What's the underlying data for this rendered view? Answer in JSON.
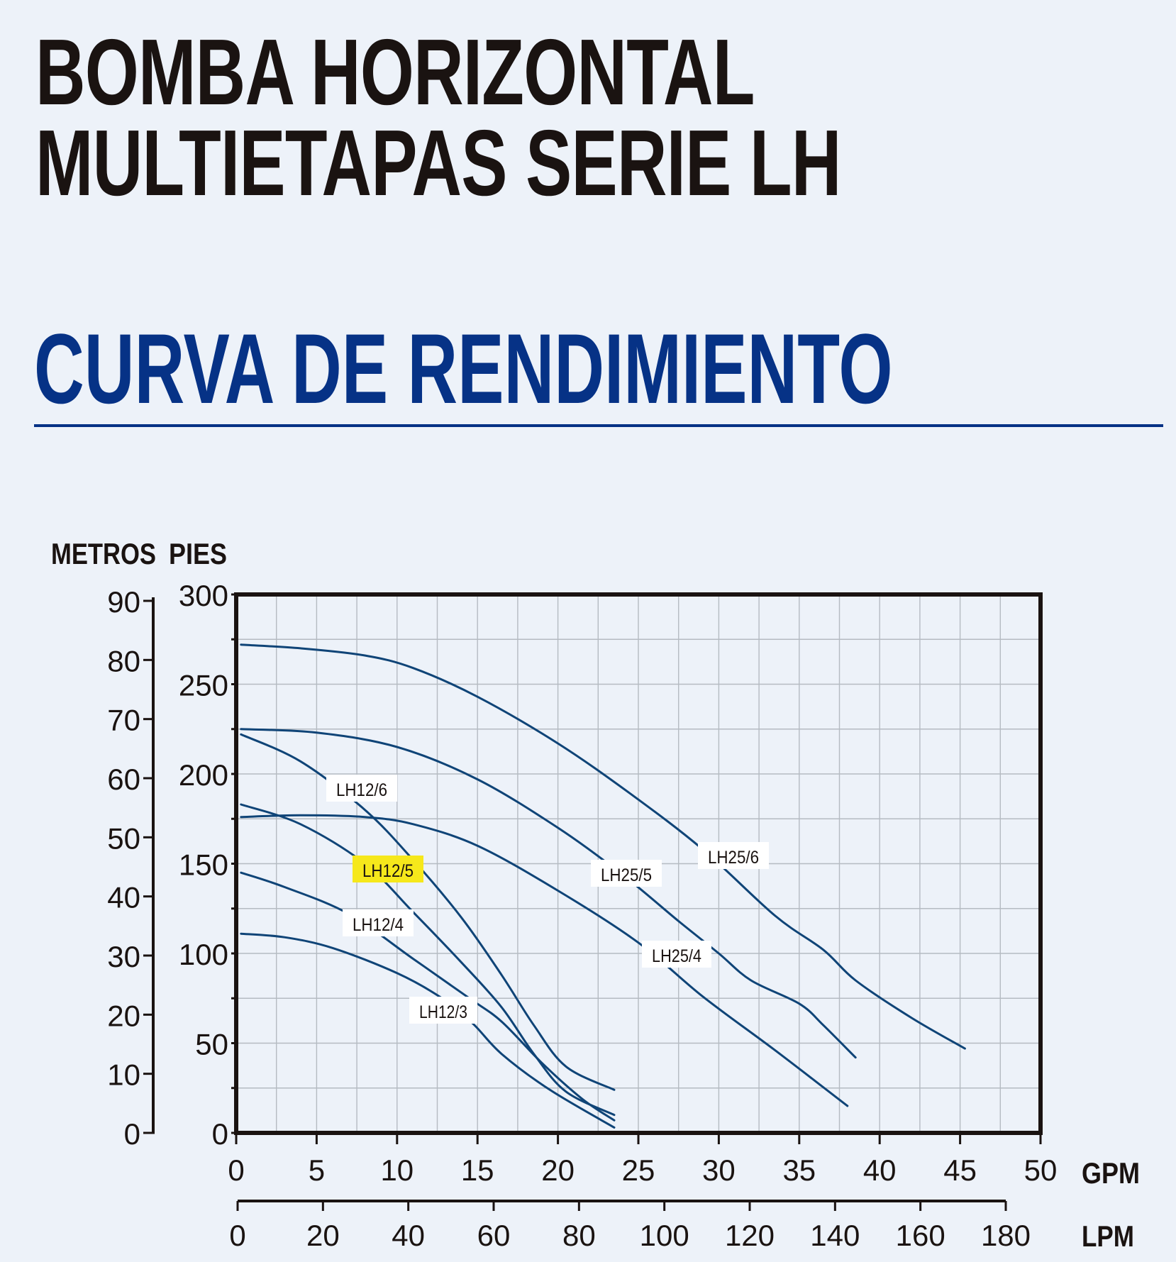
{
  "header": {
    "title": "BOMBA HORIZONTAL MULTIETAPAS SERIE LH",
    "subtitle": "CURVA DE RENDIMIENTO"
  },
  "colors": {
    "title": "#1a1311",
    "accent": "#063286",
    "curve": "#0f4477",
    "highlight": "#f6e81b",
    "background": "#edf2f9"
  },
  "chart_data": {
    "type": "line",
    "grid": true,
    "axes": {
      "x_primary": {
        "label": "GPM",
        "range": [
          0,
          50
        ],
        "ticks": [
          0,
          5,
          10,
          15,
          20,
          25,
          30,
          35,
          40,
          45,
          50
        ]
      },
      "x_secondary": {
        "label": "LPM",
        "range": [
          0,
          180
        ],
        "ticks": [
          0,
          20,
          40,
          60,
          80,
          100,
          120,
          140,
          160,
          180
        ]
      },
      "y_left": {
        "label": "METROS",
        "range": [
          0,
          90
        ],
        "ticks": [
          0,
          10,
          20,
          30,
          40,
          50,
          60,
          70,
          80,
          90
        ]
      },
      "y_right": {
        "label": "PIES",
        "range": [
          0,
          300
        ],
        "ticks": [
          0,
          50,
          100,
          150,
          200,
          250,
          300
        ]
      }
    },
    "series": [
      {
        "name": "LH12/3",
        "highlight": false,
        "points": [
          [
            0.3,
            111
          ],
          [
            3,
            109
          ],
          [
            6,
            103
          ],
          [
            10,
            89
          ],
          [
            12.8,
            75
          ],
          [
            14.7,
            61
          ],
          [
            16.5,
            44
          ],
          [
            19.5,
            24
          ],
          [
            23.5,
            3
          ]
        ]
      },
      {
        "name": "LH12/4",
        "highlight": false,
        "points": [
          [
            0.3,
            145
          ],
          [
            3,
            137
          ],
          [
            7,
            122
          ],
          [
            11,
            97
          ],
          [
            14.5,
            75
          ],
          [
            16.5,
            62
          ],
          [
            19,
            39
          ],
          [
            21.5,
            19
          ],
          [
            23.5,
            7
          ]
        ]
      },
      {
        "name": "LH12/5",
        "highlight": true,
        "points": [
          [
            0.3,
            183
          ],
          [
            4,
            172
          ],
          [
            8,
            150
          ],
          [
            11,
            123
          ],
          [
            14,
            95
          ],
          [
            16.5,
            70
          ],
          [
            18.5,
            44
          ],
          [
            20.5,
            23
          ],
          [
            23.5,
            10
          ]
        ]
      },
      {
        "name": "LH12/6",
        "highlight": false,
        "points": [
          [
            0.3,
            222
          ],
          [
            4,
            207
          ],
          [
            8,
            180
          ],
          [
            11,
            152
          ],
          [
            14,
            120
          ],
          [
            16.5,
            88
          ],
          [
            18.5,
            60
          ],
          [
            20.5,
            37
          ],
          [
            23.5,
            24
          ]
        ]
      },
      {
        "name": "LH25/4",
        "highlight": false,
        "points": [
          [
            0.3,
            176
          ],
          [
            4,
            177
          ],
          [
            8,
            176
          ],
          [
            11,
            172
          ],
          [
            15,
            160
          ],
          [
            20,
            135
          ],
          [
            25,
            106
          ],
          [
            29,
            76
          ],
          [
            33.5,
            46
          ],
          [
            38,
            15
          ]
        ]
      },
      {
        "name": "LH25/5",
        "highlight": false,
        "points": [
          [
            0.3,
            225
          ],
          [
            5,
            223
          ],
          [
            10,
            215
          ],
          [
            15,
            197
          ],
          [
            20,
            170
          ],
          [
            24,
            144
          ],
          [
            27.5,
            118
          ],
          [
            30,
            100
          ],
          [
            32,
            85
          ],
          [
            35,
            72
          ],
          [
            36.5,
            60
          ],
          [
            38.5,
            42
          ]
        ]
      },
      {
        "name": "LH25/6",
        "highlight": false,
        "points": [
          [
            0.3,
            272
          ],
          [
            4,
            270
          ],
          [
            8,
            266
          ],
          [
            11,
            259
          ],
          [
            15,
            243
          ],
          [
            20,
            217
          ],
          [
            24.5,
            189
          ],
          [
            29,
            158
          ],
          [
            33.5,
            121
          ],
          [
            36.5,
            102
          ],
          [
            38.5,
            85
          ],
          [
            42,
            64
          ],
          [
            45.3,
            47
          ]
        ]
      }
    ]
  },
  "labels": {
    "axis_header_metros": "METROS",
    "axis_header_pies": "PIES",
    "gpm": "GPM",
    "lpm": "LPM"
  }
}
